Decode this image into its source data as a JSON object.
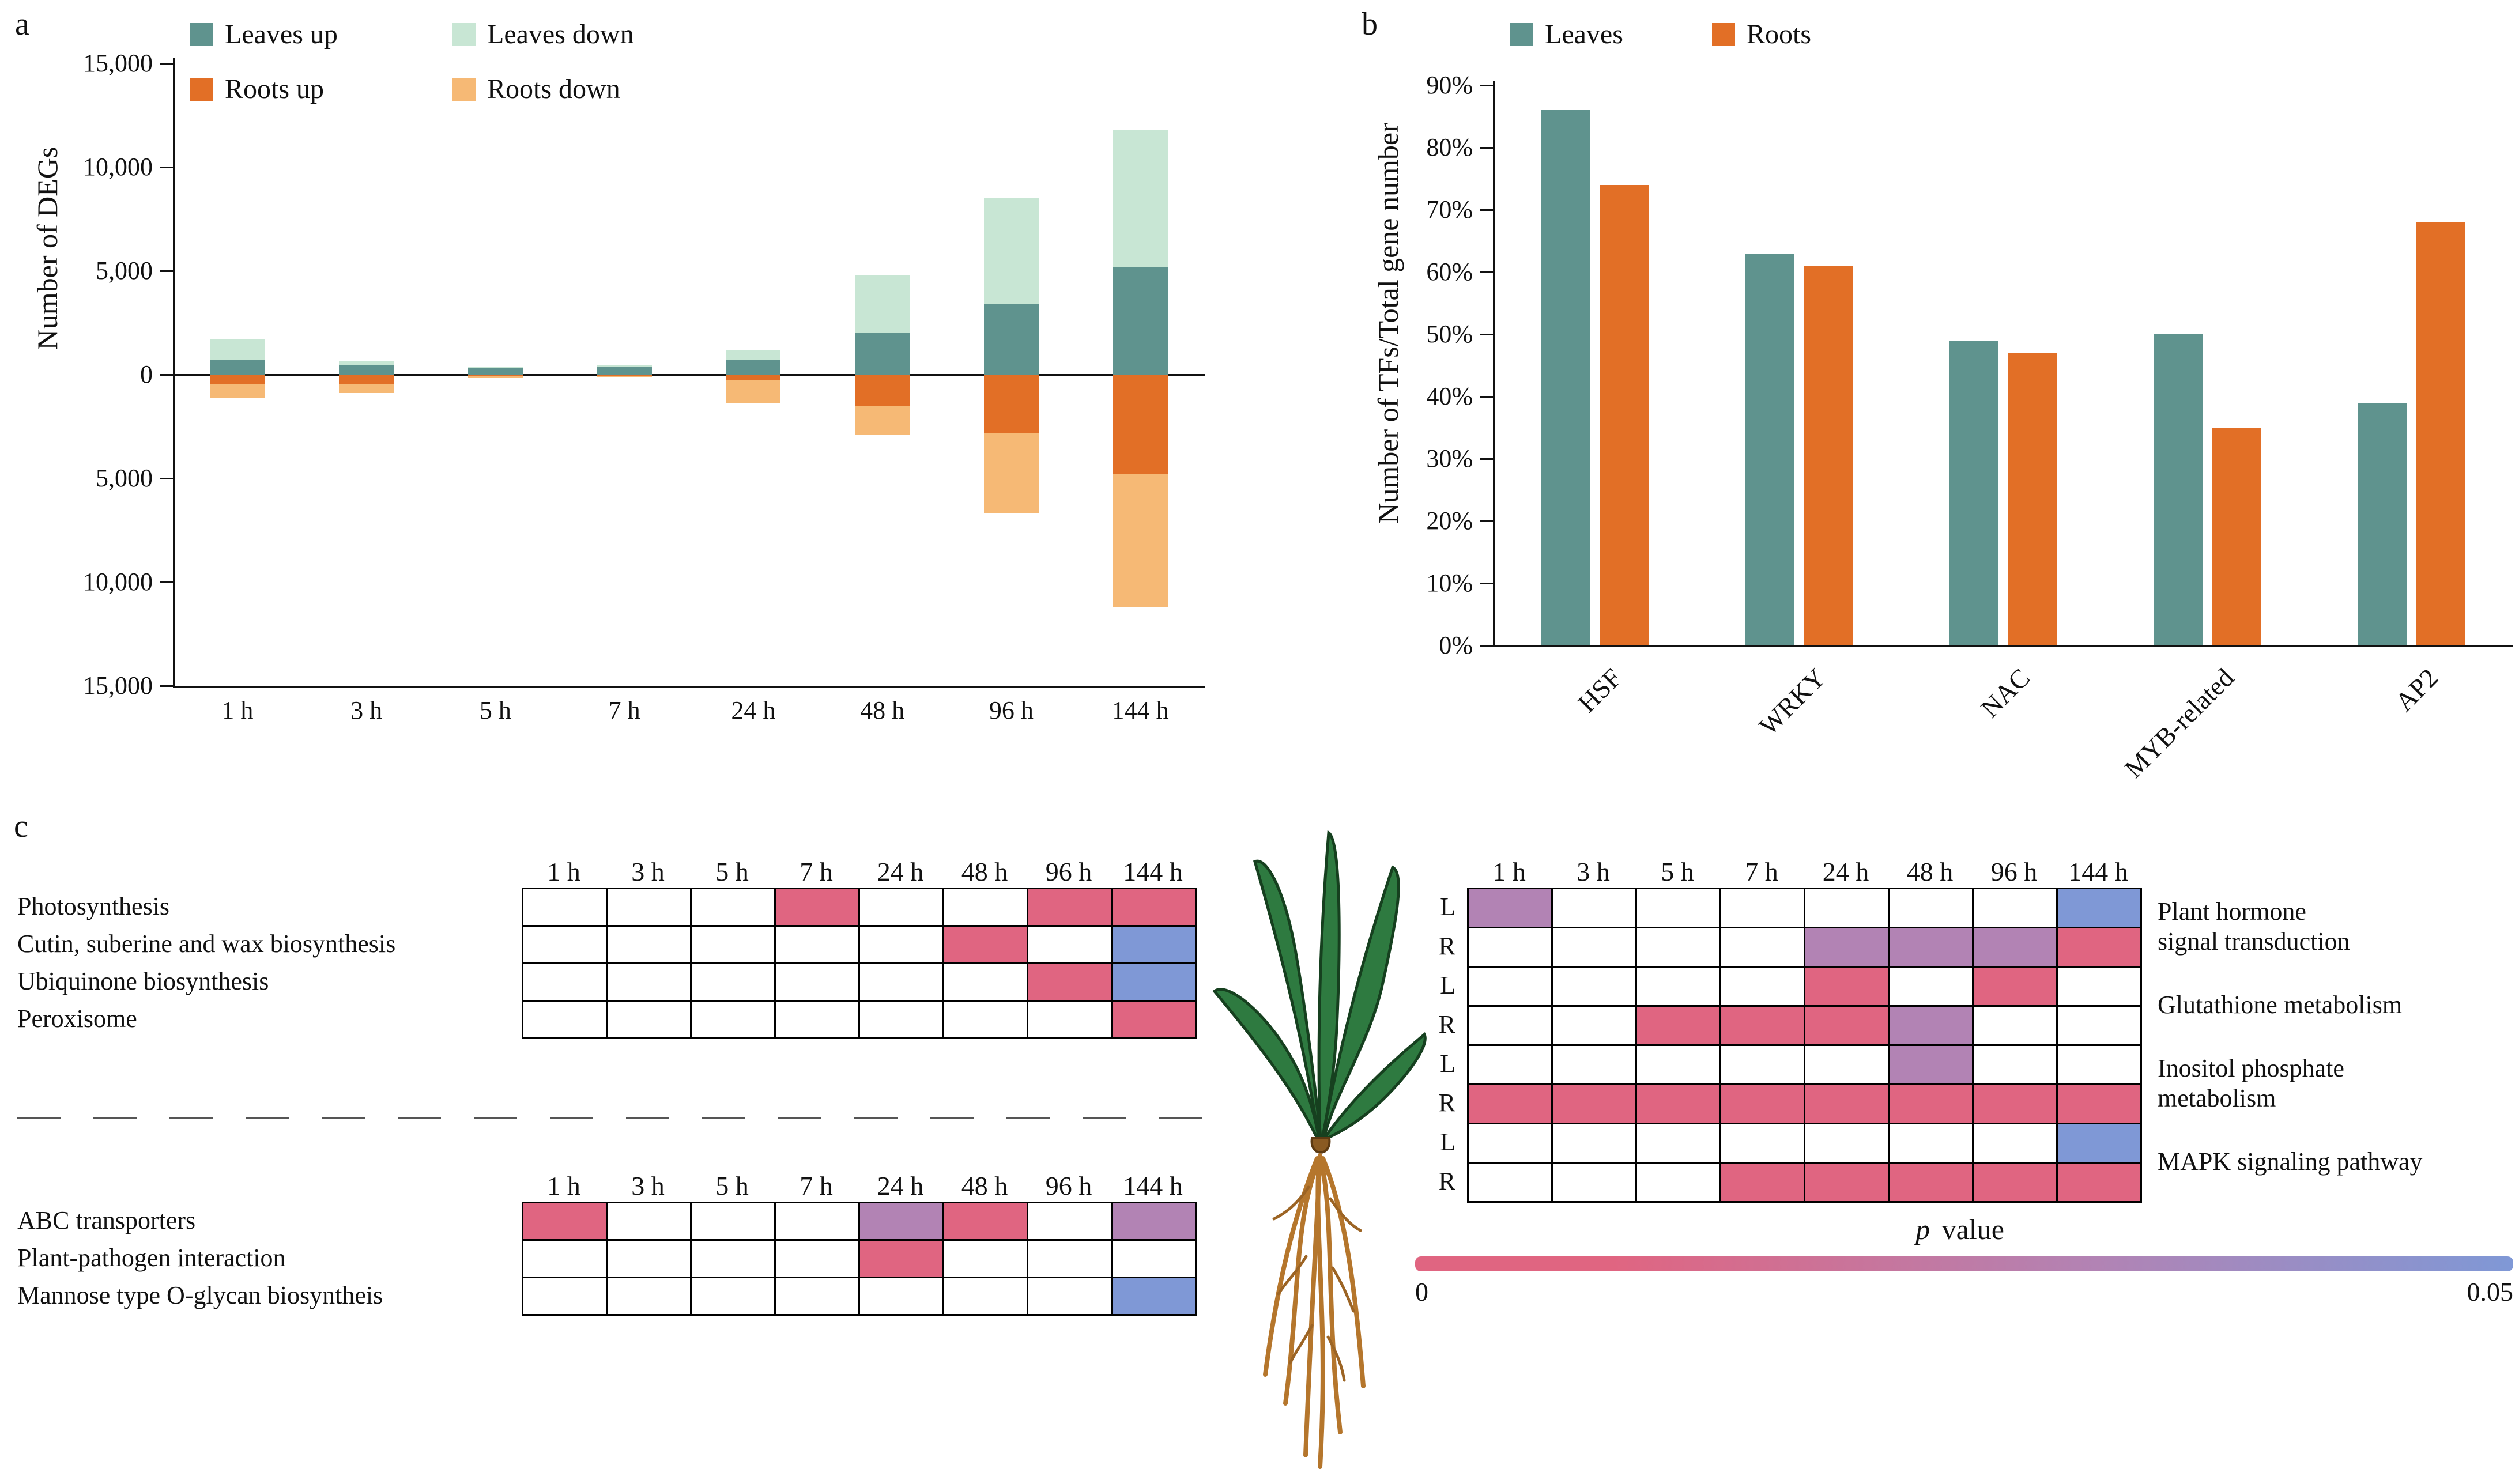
{
  "figure": {
    "panel_a_label": "a",
    "panel_b_label": "b",
    "panel_c_label": "c"
  },
  "colors": {
    "leaves_up": "#5f938e",
    "leaves_down": "#c8e6d4",
    "roots_up": "#e26f26",
    "roots_down": "#f6b975",
    "heat_low": "#e06581",
    "heat_mid": "#b283b4",
    "heat_high": "#7f98d6",
    "axis": "#111111"
  },
  "chart_data": [
    {
      "id": "degs",
      "type": "bar",
      "subtype": "diverging-stacked",
      "ylabel": "Number of DEGs",
      "categories": [
        "1 h",
        "3 h",
        "5 h",
        "7 h",
        "24 h",
        "48 h",
        "96 h",
        "144 h"
      ],
      "ylim": [
        -15000,
        15000
      ],
      "yticks": [
        [
          15000,
          "15,000"
        ],
        [
          10000,
          "10,000"
        ],
        [
          5000,
          "5,000"
        ],
        [
          0,
          "0"
        ],
        [
          -5000,
          "5,000"
        ],
        [
          -10000,
          "10,000"
        ],
        [
          -15000,
          "15,000"
        ]
      ],
      "series": [
        {
          "name": "Leaves up",
          "direction": "up",
          "color_key": "leaves_up",
          "values": [
            700,
            450,
            300,
            400,
            700,
            2000,
            3400,
            5200
          ]
        },
        {
          "name": "Leaves down",
          "direction": "up",
          "color_key": "leaves_down",
          "values": [
            1000,
            200,
            100,
            80,
            500,
            2800,
            5100,
            6600
          ]
        },
        {
          "name": "Roots up",
          "direction": "down",
          "color_key": "roots_up",
          "values": [
            450,
            450,
            80,
            60,
            250,
            1500,
            2800,
            4800
          ]
        },
        {
          "name": "Roots down",
          "direction": "down",
          "color_key": "roots_down",
          "values": [
            650,
            450,
            80,
            60,
            1100,
            1400,
            3900,
            6400
          ]
        }
      ],
      "legend_position": "top-left",
      "grid": false
    },
    {
      "id": "tfs",
      "type": "bar",
      "subtype": "grouped",
      "ylabel": "Number of TFs/Total gene number",
      "categories": [
        "HSF",
        "WRKY",
        "NAC",
        "MYB-related",
        "AP2"
      ],
      "ylim": [
        0,
        90
      ],
      "yticks": [
        0,
        10,
        20,
        30,
        40,
        50,
        60,
        70,
        80,
        90
      ],
      "ytick_suffix": "%",
      "series": [
        {
          "name": "Leaves",
          "color_key": "leaves_up",
          "values": [
            86,
            63,
            49,
            50,
            39
          ]
        },
        {
          "name": "Roots",
          "color_key": "roots_up",
          "values": [
            74,
            61,
            47,
            35,
            68
          ]
        }
      ],
      "legend_position": "top-left",
      "grid": false
    },
    {
      "id": "heat_leaves_top",
      "type": "heatmap",
      "columns": [
        "1 h",
        "3 h",
        "5 h",
        "7 h",
        "24 h",
        "48 h",
        "96 h",
        "144 h"
      ],
      "rows": [
        "Photosynthesis",
        "Cutin, suberine and wax biosynthesis",
        "Ubiquinone biosynthesis",
        "Peroxisome"
      ],
      "cells": [
        [
          null,
          null,
          null,
          "low",
          null,
          null,
          "low",
          "low"
        ],
        [
          null,
          null,
          null,
          null,
          null,
          "low",
          null,
          "high"
        ],
        [
          null,
          null,
          null,
          null,
          null,
          null,
          "low",
          "high"
        ],
        [
          null,
          null,
          null,
          null,
          null,
          null,
          null,
          "low"
        ]
      ]
    },
    {
      "id": "heat_leaves_bottom",
      "type": "heatmap",
      "columns": [
        "1 h",
        "3 h",
        "5 h",
        "7 h",
        "24 h",
        "48 h",
        "96 h",
        "144 h"
      ],
      "rows": [
        "ABC transporters",
        "Plant-pathogen interaction",
        "Mannose type O-glycan biosyntheis"
      ],
      "cells": [
        [
          "low",
          null,
          null,
          null,
          "mid",
          "low",
          null,
          "mid"
        ],
        [
          null,
          null,
          null,
          null,
          "low",
          null,
          null,
          null
        ],
        [
          null,
          null,
          null,
          null,
          null,
          null,
          null,
          "high"
        ]
      ]
    },
    {
      "id": "heat_right",
      "type": "heatmap",
      "columns": [
        "1 h",
        "3 h",
        "5 h",
        "7 h",
        "24 h",
        "48 h",
        "96 h",
        "144 h"
      ],
      "row_labels": [
        "L",
        "R",
        "L",
        "R",
        "L",
        "R",
        "L",
        "R"
      ],
      "pathways": [
        [
          "Plant hormone",
          "signal transduction"
        ],
        [
          "Glutathione metabolism"
        ],
        [
          "Inositol phosphate",
          "metabolism"
        ],
        [
          "MAPK signaling pathway"
        ]
      ],
      "cells": [
        [
          "mid",
          null,
          null,
          null,
          null,
          null,
          null,
          "high"
        ],
        [
          null,
          null,
          null,
          null,
          "mid",
          "mid",
          "mid",
          "low"
        ],
        [
          null,
          null,
          null,
          null,
          "low",
          null,
          "low",
          null
        ],
        [
          null,
          null,
          "low",
          "low",
          "low",
          "mid",
          null,
          null
        ],
        [
          null,
          null,
          null,
          null,
          null,
          "mid",
          null,
          null
        ],
        [
          "low",
          "low",
          "low",
          "low",
          "low",
          "low",
          "low",
          "low"
        ],
        [
          null,
          null,
          null,
          null,
          null,
          null,
          null,
          "high"
        ],
        [
          null,
          null,
          null,
          "low",
          "low",
          "low",
          "low",
          "low"
        ]
      ]
    }
  ],
  "panel_c": {
    "pvalue_italic": "p",
    "pvalue_rest": "value",
    "scale_min": "0",
    "scale_max": "0.05"
  }
}
